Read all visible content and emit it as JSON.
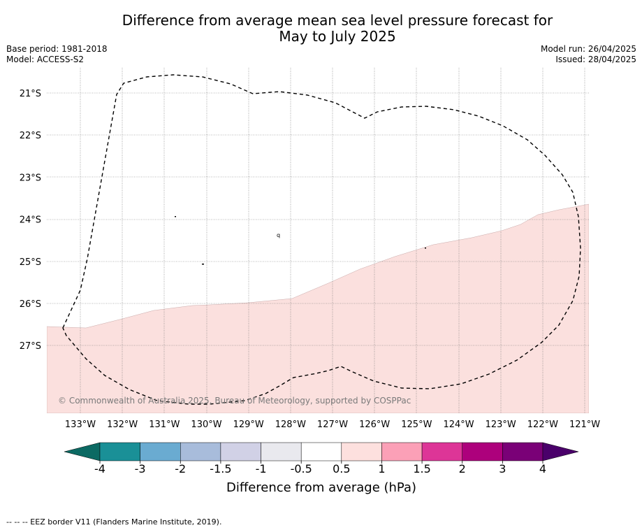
{
  "title": {
    "line1": "Difference from average mean sea level pressure forecast for",
    "line2": "May to July 2025"
  },
  "meta": {
    "base_period": "Base period: 1981-2018",
    "model": "Model: ACCESS-S2",
    "model_run": "Model run: 26/04/2025",
    "issued": "Issued: 28/04/2025"
  },
  "map": {
    "lat_labels": [
      "21°S",
      "22°S",
      "23°S",
      "24°S",
      "25°S",
      "26°S",
      "27°S"
    ],
    "lon_labels": [
      "133°W",
      "132°W",
      "131°W",
      "130°W",
      "129°W",
      "128°W",
      "127°W",
      "126°W",
      "125°W",
      "124°W",
      "123°W",
      "122°W",
      "121°W"
    ],
    "copyright": "© Commonwealth of Australia 2025, Bureau of Meteorology, supported by COSPPac",
    "shaded_category": "0.5 to 1",
    "shaded_color": "#fbe0de",
    "island_label": "q"
  },
  "colorbar": {
    "tick_labels": [
      "-4",
      "-3",
      "-2",
      "-1.5",
      "-1",
      "-0.5",
      "0.5",
      "1",
      "1.5",
      "2",
      "3",
      "4"
    ],
    "colors": [
      "#1a9097",
      "#6aabd1",
      "#a8bcdb",
      "#d1d1e6",
      "#e9e9ee",
      "#ffffff",
      "#fde0de",
      "#fba0b7",
      "#dd3597",
      "#ad017c",
      "#7a0177"
    ],
    "under_color": "#0c6a63",
    "over_color": "#4a006a",
    "label": "Difference from average (hPa)"
  },
  "footnote": "--  --  -- EEZ border V11 (Flanders Marine Institute, 2019)."
}
